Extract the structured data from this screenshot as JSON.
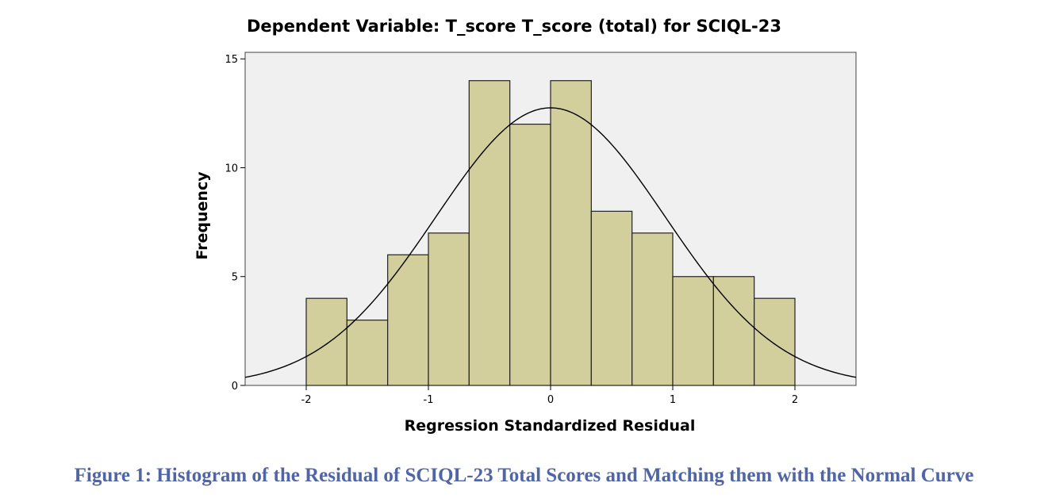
{
  "chart_data": {
    "type": "bar",
    "title": "Dependent Variable: T_score T_score (total) for SCIQL-23",
    "xlabel": "Regression Standardized Residual",
    "ylabel": "Frequency",
    "xlim": [
      -2.5,
      2.5
    ],
    "ylim": [
      0,
      15.3
    ],
    "xticks": [
      -2,
      -1,
      0,
      1,
      2
    ],
    "xtick_labels": [
      "-2",
      "-1",
      "0",
      "1",
      "2"
    ],
    "yticks": [
      0,
      5,
      10,
      15
    ],
    "ytick_labels": [
      "0",
      "5",
      "10",
      "15"
    ],
    "bin_width": 0.3333,
    "bins": [
      {
        "start": -2.0,
        "end": -1.6667,
        "count": 4
      },
      {
        "start": -1.6667,
        "end": -1.3333,
        "count": 3
      },
      {
        "start": -1.3333,
        "end": -1.0,
        "count": 6
      },
      {
        "start": -1.0,
        "end": -0.6667,
        "count": 7
      },
      {
        "start": -0.6667,
        "end": -0.3333,
        "count": 14
      },
      {
        "start": -0.3333,
        "end": 0.0,
        "count": 12
      },
      {
        "start": 0.0,
        "end": 0.3333,
        "count": 14
      },
      {
        "start": 0.3333,
        "end": 0.6667,
        "count": 8
      },
      {
        "start": 0.6667,
        "end": 1.0,
        "count": 7
      },
      {
        "start": 1.0,
        "end": 1.3333,
        "count": 5
      },
      {
        "start": 1.3333,
        "end": 1.6667,
        "count": 5
      },
      {
        "start": 1.6667,
        "end": 2.0,
        "count": 4
      }
    ],
    "normal_curve": {
      "mean": 0.0,
      "std_dev": 0.94,
      "peak": 12.75
    },
    "colors": {
      "bar_fill": "#d3cf9d",
      "bar_stroke": "#222222",
      "plot_background": "#f0f0f0",
      "curve": "#000000"
    },
    "grid": false,
    "legend": "none"
  },
  "caption": "Figure 1: Histogram of the Residual of SCIQL-23 Total Scores and Matching them with the Normal Curve"
}
